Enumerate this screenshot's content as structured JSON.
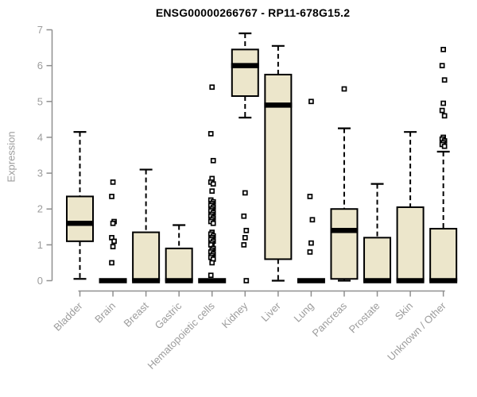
{
  "chart_data": {
    "type": "boxplot",
    "title": "ENSG00000266767 - RP11-678G15.2",
    "ylabel": "Expression",
    "xlabel": "",
    "ylim": [
      0,
      7
    ],
    "yticks": [
      0,
      1,
      2,
      3,
      4,
      5,
      6,
      7
    ],
    "grid": false,
    "legend": "none",
    "categories": [
      "Bladder",
      "Brain",
      "Breast",
      "Gastric",
      "Hematopoietic cells",
      "Kidney",
      "Liver",
      "Lung",
      "Pancreas",
      "Prostate",
      "Skin",
      "Unknown / Other"
    ],
    "boxes": [
      {
        "category": "Bladder",
        "whisker_low": 0.05,
        "q1": 1.1,
        "median": 1.6,
        "q3": 2.35,
        "whisker_high": 4.15,
        "outliers": []
      },
      {
        "category": "Brain",
        "whisker_low": 0,
        "q1": 0,
        "median": 0,
        "q3": 0,
        "whisker_high": 0,
        "outliers": [
          2.75,
          2.35,
          1.65,
          1.6,
          1.2,
          1.1,
          0.95,
          0.5
        ]
      },
      {
        "category": "Breast",
        "whisker_low": 0,
        "q1": 0,
        "median": 0,
        "q3": 1.35,
        "whisker_high": 3.1,
        "outliers": []
      },
      {
        "category": "Gastric",
        "whisker_low": 0,
        "q1": 0,
        "median": 0,
        "q3": 0.9,
        "whisker_high": 1.55,
        "outliers": []
      },
      {
        "category": "Hematopoietic cells",
        "whisker_low": 0,
        "q1": 0,
        "median": 0,
        "q3": 0,
        "whisker_high": 0,
        "outliers": [
          5.4,
          4.1,
          3.35,
          2.85,
          2.75,
          2.7,
          2.5,
          2.25,
          2.2,
          2.15,
          2.1,
          2.05,
          2.0,
          1.95,
          1.9,
          1.85,
          1.8,
          1.75,
          1.7,
          1.65,
          1.6,
          1.35,
          1.3,
          1.25,
          1.2,
          1.15,
          1.1,
          1.05,
          1.0,
          0.9,
          0.85,
          0.8,
          0.75,
          0.7,
          0.65,
          0.6,
          0.5,
          0.15
        ]
      },
      {
        "category": "Kidney",
        "whisker_low": 4.55,
        "q1": 5.15,
        "median": 6.0,
        "q3": 6.45,
        "whisker_high": 6.9,
        "outliers": [
          2.45,
          1.8,
          1.4,
          1.2,
          1.0,
          0.0
        ]
      },
      {
        "category": "Liver",
        "whisker_low": 0.0,
        "q1": 0.6,
        "median": 4.9,
        "q3": 5.75,
        "whisker_high": 6.55,
        "outliers": []
      },
      {
        "category": "Lung",
        "whisker_low": 0,
        "q1": 0,
        "median": 0,
        "q3": 0,
        "whisker_high": 0,
        "outliers": [
          5.0,
          2.35,
          1.7,
          1.05,
          0.8
        ]
      },
      {
        "category": "Pancreas",
        "whisker_low": 0.0,
        "q1": 0.05,
        "median": 1.4,
        "q3": 2.0,
        "whisker_high": 4.25,
        "outliers": [
          5.35
        ]
      },
      {
        "category": "Prostate",
        "whisker_low": 0,
        "q1": 0,
        "median": 0,
        "q3": 1.2,
        "whisker_high": 2.7,
        "outliers": []
      },
      {
        "category": "Skin",
        "whisker_low": 0,
        "q1": 0,
        "median": 0,
        "q3": 2.05,
        "whisker_high": 4.15,
        "outliers": []
      },
      {
        "category": "Unknown / Other",
        "whisker_low": 0,
        "q1": 0,
        "median": 0,
        "q3": 1.45,
        "whisker_high": 3.6,
        "outliers": [
          6.45,
          6.0,
          5.6,
          4.95,
          4.75,
          4.6,
          4.0,
          3.95,
          3.9,
          3.85,
          3.8,
          3.75
        ]
      }
    ],
    "colors": {
      "box_fill": "#ece6cb",
      "box_border": "#000000",
      "median": "#000000",
      "whisker": "#000000",
      "outlier_stroke": "#000000",
      "outlier_fill": "#ffffff",
      "axis_line": "#8f8f8f",
      "tick_text": "#9c9c9c",
      "title_text": "#000000"
    }
  }
}
